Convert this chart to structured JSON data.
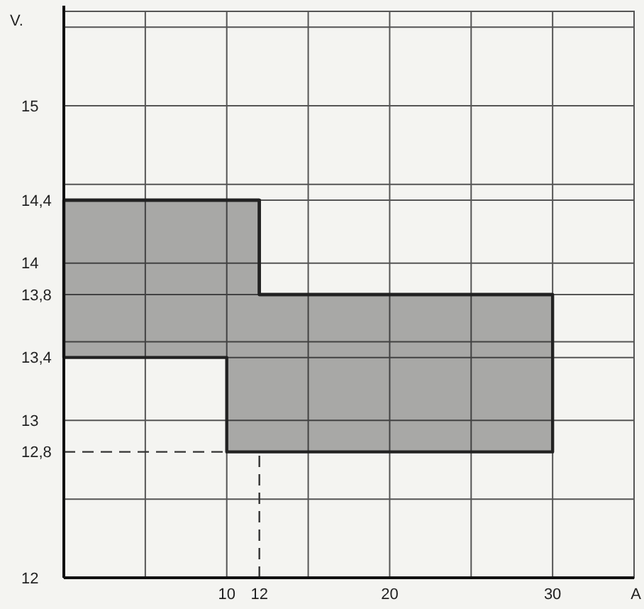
{
  "chart_data": {
    "type": "step",
    "xlabel": "A",
    "ylabel": "V.",
    "xlim": [
      0,
      35
    ],
    "ylim": [
      12,
      15.6
    ],
    "xticks": [
      {
        "value": 5,
        "label": null
      },
      10,
      12,
      {
        "value": 15,
        "label": null
      },
      20,
      {
        "value": 25,
        "label": null
      },
      30,
      {
        "value": 35,
        "label": null
      }
    ],
    "yticks": [
      12,
      {
        "value": 12.5,
        "label": null
      },
      {
        "value": 12.8,
        "label": "12,8"
      },
      13,
      {
        "value": 13.4,
        "label": "13,4"
      },
      {
        "value": 13.5,
        "label": null
      },
      {
        "value": 13.8,
        "label": "13,8"
      },
      14,
      {
        "value": 14.4,
        "label": "14,4"
      },
      {
        "value": 14.5,
        "label": null
      },
      15,
      {
        "value": 15.5,
        "label": null
      }
    ],
    "grid": true,
    "series": [
      {
        "color": "#222222",
        "upper": [
          14.4,
          14.4,
          13.8,
          13.8
        ],
        "x": [
          0,
          10,
          12,
          30
        ],
        "values": [
          14.4,
          14.4,
          13.8,
          13.8
        ],
        "lower": [
          13.4,
          12.8,
          12.8,
          12.8
        ]
      }
    ],
    "ref_lines": [
      {
        "axis": "y",
        "value": 12.8,
        "line_style": "dashed"
      },
      {
        "axis": "x",
        "value": 12,
        "line_style": "dashed"
      }
    ]
  }
}
